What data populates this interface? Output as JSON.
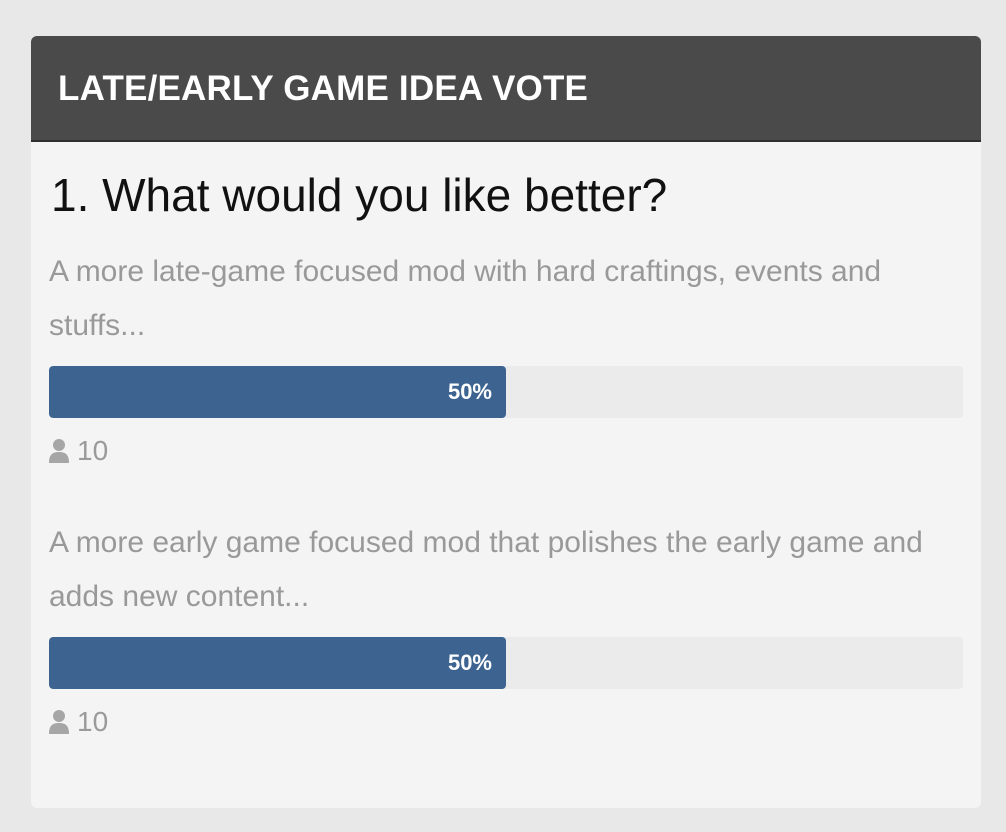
{
  "poll": {
    "header_title": "LATE/EARLY GAME IDEA VOTE",
    "question": "1. What would you like better?",
    "options": [
      {
        "text": "A more late-game focused mod with hard craftings, events and stuffs...",
        "percent_label": "50%",
        "percent_value": 50,
        "votes": "10"
      },
      {
        "text": "A more early game focused mod that polishes the early game and adds new content...",
        "percent_label": "50%",
        "percent_value": 50,
        "votes": "10"
      }
    ],
    "colors": {
      "header_bg": "#4a4a4a",
      "bar_fill": "#3d6490",
      "bar_track": "#ebebeb",
      "card_bg": "#f4f4f4",
      "page_bg": "#e8e8e8"
    },
    "icons": {
      "votes_icon": "user-icon"
    }
  }
}
